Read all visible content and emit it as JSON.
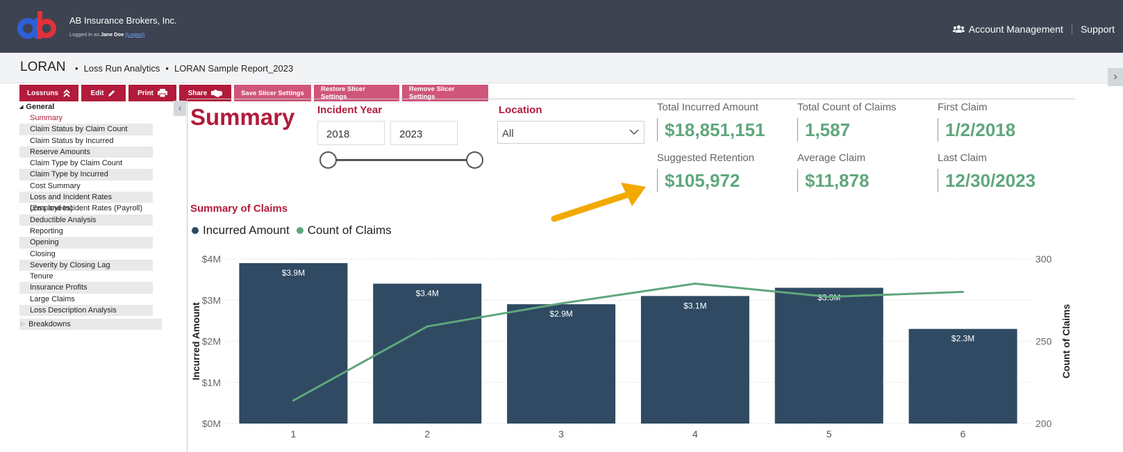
{
  "header": {
    "logo_text": "ab",
    "company": "AB Insurance Brokers, Inc.",
    "logged_in_prefix": "Logged in as",
    "user": "Jane Doe",
    "logout": "(Logout)",
    "nav": {
      "account": "Account Management",
      "support": "Support"
    }
  },
  "breadcrumb": {
    "app": "LORAN",
    "items": [
      "Loss Run Analytics",
      "LORAN Sample Report_2023"
    ]
  },
  "toolbar": {
    "lossruns": "Lossruns",
    "edit": "Edit",
    "print": "Print",
    "share": "Share",
    "save_slicer": "Save Slicer Settings",
    "restore_slicer": "Restore Slicer Settings",
    "remove_slicer": "Remove Slicer Settings"
  },
  "sidebar": {
    "section": "General",
    "items": [
      "Summary",
      "Claim Status by Claim Count",
      "Claim Status by Incurred",
      "Reserve Amounts",
      "Claim Type by Claim Count",
      "Claim Type by Incurred",
      "Cost Summary",
      "Loss and Incident Rates (Employees)",
      "Loss and Incident Rates (Payroll)",
      "Deductible Analysis",
      "Reporting",
      "Opening",
      "Closing",
      "Severity by Closing Lag",
      "Tenure",
      "Insurance Profits",
      "Large Claims",
      "Loss Description Analysis"
    ],
    "breakdowns": "Breakdowns"
  },
  "main": {
    "title": "Summary",
    "incident_year_label": "Incident Year",
    "year_start": "2018",
    "year_end": "2023",
    "location_label": "Location",
    "location_value": "All"
  },
  "kpis": {
    "total_incurred_label": "Total Incurred Amount",
    "total_incurred": "$18,851,151",
    "total_count_label": "Total Count of Claims",
    "total_count": "1,587",
    "first_claim_label": "First Claim",
    "first_claim": "1/2/2018",
    "retention_label": "Suggested Retention",
    "retention": "$105,972",
    "avg_claim_label": "Average Claim",
    "avg_claim": "$11,878",
    "last_claim_label": "Last Claim",
    "last_claim": "12/30/2023"
  },
  "colors": {
    "brand_red": "#b21b3b",
    "bar": "#2f4a62",
    "line": "#5fa77c",
    "header": "#3d4350",
    "arrow": "#f2a900"
  },
  "chart_data": {
    "type": "bar",
    "title": "Summary of Claims",
    "categories": [
      "1",
      "2",
      "3",
      "4",
      "5",
      "6"
    ],
    "series": [
      {
        "name": "Incurred Amount",
        "type": "bar",
        "axis": "left",
        "values": [
          3.9,
          3.4,
          2.9,
          3.1,
          3.3,
          2.3
        ],
        "labels": [
          "$3.9M",
          "$3.4M",
          "$2.9M",
          "$3.1M",
          "$3.3M",
          "$2.3M"
        ]
      },
      {
        "name": "Count of Claims",
        "type": "line",
        "axis": "right",
        "values": [
          214,
          259,
          273,
          285,
          277,
          280
        ]
      }
    ],
    "ylabel": "Incurred Amount",
    "y2label": "Count of Claims",
    "ylim": [
      0,
      4
    ],
    "y2lim": [
      200,
      300
    ],
    "yticks": [
      "$0M",
      "$1M",
      "$2M",
      "$3M",
      "$4M"
    ],
    "y2ticks": [
      "200",
      "250",
      "300"
    ],
    "grid": true
  }
}
